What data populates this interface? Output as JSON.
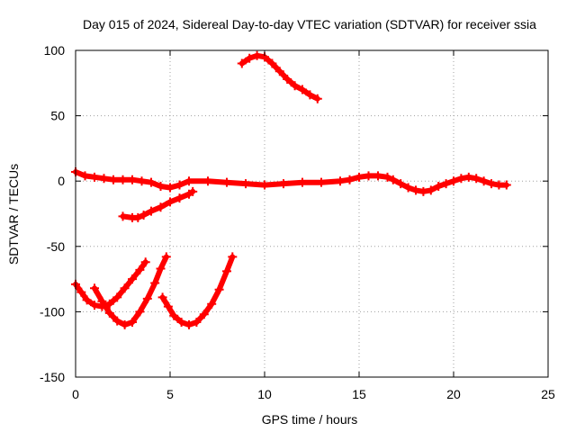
{
  "chart_data": {
    "type": "scatter",
    "title": "Day 015 of 2024, Sidereal Day-to-day VTEC variation (SDTVAR) for receiver ssia",
    "xlabel": "GPS time / hours",
    "ylabel": "SDTVAR / TECUs",
    "xlim": [
      0,
      25
    ],
    "ylim": [
      -150,
      100
    ],
    "xticks": [
      0,
      5,
      10,
      15,
      20,
      25
    ],
    "yticks": [
      -150,
      -100,
      -50,
      0,
      50,
      100
    ],
    "grid": true,
    "legend": "none",
    "marker": "plus",
    "color": "#ff0000",
    "series": [
      {
        "name": "arc-1",
        "points": [
          [
            8.8,
            90
          ],
          [
            9.2,
            94
          ],
          [
            9.6,
            96
          ],
          [
            10.0,
            95
          ],
          [
            10.4,
            90
          ],
          [
            10.8,
            84
          ],
          [
            11.2,
            78
          ],
          [
            11.6,
            73
          ],
          [
            12.0,
            70
          ],
          [
            12.4,
            66
          ],
          [
            12.8,
            63
          ]
        ]
      },
      {
        "name": "arc-2",
        "points": [
          [
            0.0,
            7
          ],
          [
            0.5,
            4
          ],
          [
            1.0,
            3
          ],
          [
            1.5,
            2
          ],
          [
            2.0,
            1
          ],
          [
            2.5,
            1
          ],
          [
            3.0,
            1
          ],
          [
            3.5,
            0
          ],
          [
            4.0,
            -1
          ],
          [
            4.5,
            -4
          ],
          [
            5.0,
            -5
          ],
          [
            5.5,
            -3
          ],
          [
            6.0,
            0
          ],
          [
            7.0,
            0
          ],
          [
            8.0,
            -1
          ],
          [
            9.0,
            -2
          ],
          [
            10.0,
            -3
          ],
          [
            11.0,
            -2
          ],
          [
            12.0,
            -1
          ],
          [
            13.0,
            -1
          ],
          [
            14.0,
            0
          ],
          [
            14.5,
            1
          ],
          [
            15.0,
            3
          ],
          [
            15.5,
            4
          ],
          [
            16.0,
            4
          ],
          [
            16.5,
            3
          ],
          [
            16.8,
            1
          ],
          [
            17.2,
            -2
          ],
          [
            17.6,
            -5
          ],
          [
            18.0,
            -7
          ],
          [
            18.4,
            -8
          ],
          [
            18.8,
            -7
          ],
          [
            19.2,
            -4
          ],
          [
            19.6,
            -2
          ],
          [
            20.0,
            0
          ],
          [
            20.4,
            2
          ],
          [
            20.8,
            3
          ],
          [
            21.2,
            2
          ],
          [
            21.6,
            0
          ],
          [
            22.0,
            -2
          ],
          [
            22.4,
            -3
          ],
          [
            22.8,
            -3
          ]
        ]
      },
      {
        "name": "arc-3",
        "points": [
          [
            2.5,
            -27
          ],
          [
            3.0,
            -28
          ],
          [
            3.3,
            -28
          ],
          [
            3.6,
            -26
          ],
          [
            4.0,
            -23
          ],
          [
            4.5,
            -20
          ],
          [
            5.0,
            -16
          ],
          [
            5.5,
            -13
          ],
          [
            6.0,
            -10
          ],
          [
            6.2,
            -8
          ]
        ]
      },
      {
        "name": "arc-4",
        "points": [
          [
            0.0,
            -79
          ],
          [
            0.3,
            -85
          ],
          [
            0.6,
            -91
          ],
          [
            1.0,
            -95
          ],
          [
            1.4,
            -96
          ],
          [
            1.8,
            -94
          ],
          [
            2.2,
            -89
          ],
          [
            2.6,
            -82
          ],
          [
            3.0,
            -75
          ],
          [
            3.4,
            -68
          ],
          [
            3.7,
            -62
          ]
        ]
      },
      {
        "name": "arc-5",
        "points": [
          [
            1.0,
            -82
          ],
          [
            1.4,
            -92
          ],
          [
            1.8,
            -101
          ],
          [
            2.2,
            -107
          ],
          [
            2.6,
            -110
          ],
          [
            3.0,
            -108
          ],
          [
            3.4,
            -100
          ],
          [
            3.8,
            -90
          ],
          [
            4.2,
            -78
          ],
          [
            4.5,
            -67
          ],
          [
            4.8,
            -58
          ]
        ]
      },
      {
        "name": "arc-6",
        "points": [
          [
            4.6,
            -89
          ],
          [
            4.9,
            -96
          ],
          [
            5.2,
            -103
          ],
          [
            5.6,
            -108
          ],
          [
            6.0,
            -110
          ],
          [
            6.4,
            -108
          ],
          [
            6.8,
            -102
          ],
          [
            7.2,
            -94
          ],
          [
            7.6,
            -83
          ],
          [
            8.0,
            -69
          ],
          [
            8.3,
            -58
          ]
        ]
      }
    ]
  }
}
